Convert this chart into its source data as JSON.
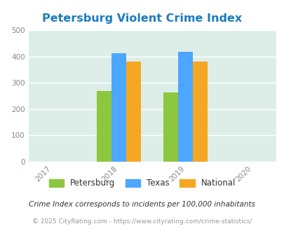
{
  "title": "Petersburg Violent Crime Index",
  "title_color": "#1a7bbf",
  "years": [
    2017,
    2018,
    2019,
    2020
  ],
  "bar_years": [
    2018,
    2019
  ],
  "petersburg": [
    268,
    264
  ],
  "texas": [
    413,
    418
  ],
  "national": [
    381,
    381
  ],
  "colors": {
    "petersburg": "#8dc63f",
    "texas": "#4da6ff",
    "national": "#f5a623"
  },
  "ylim": [
    0,
    500
  ],
  "yticks": [
    0,
    100,
    200,
    300,
    400,
    500
  ],
  "background_color": "#ddeee8",
  "legend_labels": [
    "Petersburg",
    "Texas",
    "National"
  ],
  "footnote1": "Crime Index corresponds to incidents per 100,000 inhabitants",
  "footnote2": "© 2025 CityRating.com - https://www.cityrating.com/crime-statistics/",
  "bar_width": 0.22
}
